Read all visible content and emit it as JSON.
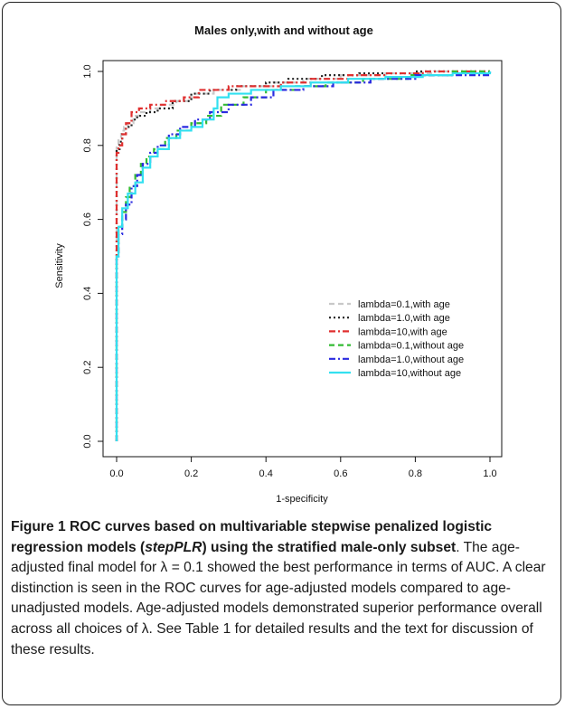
{
  "chart_data": {
    "type": "line",
    "title": "Males only,with and without age",
    "xlabel": "1-specificity",
    "ylabel": "Sensitivity",
    "xlim": [
      0,
      1
    ],
    "ylim": [
      0,
      1
    ],
    "xticks": [
      "0.0",
      "0.2",
      "0.4",
      "0.6",
      "0.8",
      "1.0"
    ],
    "yticks": [
      "0.0",
      "0.2",
      "0.4",
      "0.6",
      "0.8",
      "1.0"
    ],
    "grid": false,
    "legend_position": "bottom-right",
    "series": [
      {
        "name": "lambda=0.1,with age",
        "color": "#c8c8c8",
        "dash": "dashed",
        "points": [
          [
            0,
            0
          ],
          [
            0,
            0.52
          ],
          [
            0,
            0.7
          ],
          [
            0,
            0.8
          ],
          [
            0.005,
            0.82
          ],
          [
            0.012,
            0.84
          ],
          [
            0.02,
            0.85
          ],
          [
            0.03,
            0.86
          ],
          [
            0.045,
            0.88
          ],
          [
            0.06,
            0.89
          ],
          [
            0.09,
            0.9
          ],
          [
            0.12,
            0.91
          ],
          [
            0.16,
            0.92
          ],
          [
            0.2,
            0.94
          ],
          [
            0.26,
            0.95
          ],
          [
            0.33,
            0.96
          ],
          [
            0.42,
            0.97
          ],
          [
            0.5,
            0.98
          ],
          [
            0.6,
            0.99
          ],
          [
            0.72,
            0.995
          ],
          [
            0.85,
            1.0
          ],
          [
            1,
            1.0
          ]
        ]
      },
      {
        "name": "lambda=1.0,with age",
        "color": "#222222",
        "dash": "dotted",
        "points": [
          [
            0,
            0
          ],
          [
            0,
            0.55
          ],
          [
            0,
            0.72
          ],
          [
            0,
            0.79
          ],
          [
            0.008,
            0.81
          ],
          [
            0.015,
            0.83
          ],
          [
            0.025,
            0.85
          ],
          [
            0.04,
            0.87
          ],
          [
            0.055,
            0.88
          ],
          [
            0.08,
            0.89
          ],
          [
            0.11,
            0.9
          ],
          [
            0.15,
            0.92
          ],
          [
            0.2,
            0.94
          ],
          [
            0.25,
            0.95
          ],
          [
            0.32,
            0.96
          ],
          [
            0.4,
            0.97
          ],
          [
            0.46,
            0.98
          ],
          [
            0.55,
            0.99
          ],
          [
            0.65,
            0.995
          ],
          [
            0.8,
            1.0
          ],
          [
            1,
            1.0
          ]
        ]
      },
      {
        "name": "lambda=10,with age",
        "color": "#e03030",
        "dash": "dashdot",
        "points": [
          [
            0,
            0
          ],
          [
            0,
            0.5
          ],
          [
            0,
            0.7
          ],
          [
            0,
            0.78
          ],
          [
            0.005,
            0.8
          ],
          [
            0.015,
            0.83
          ],
          [
            0.025,
            0.86
          ],
          [
            0.04,
            0.89
          ],
          [
            0.06,
            0.9
          ],
          [
            0.09,
            0.91
          ],
          [
            0.13,
            0.92
          ],
          [
            0.18,
            0.93
          ],
          [
            0.22,
            0.95
          ],
          [
            0.3,
            0.96
          ],
          [
            0.38,
            0.96
          ],
          [
            0.44,
            0.97
          ],
          [
            0.52,
            0.98
          ],
          [
            0.62,
            0.99
          ],
          [
            0.72,
            0.995
          ],
          [
            0.82,
            1.0
          ],
          [
            1,
            1.0
          ]
        ]
      },
      {
        "name": "lambda=0.1,without age",
        "color": "#33bb33",
        "dash": "dashed",
        "points": [
          [
            0,
            0
          ],
          [
            0,
            0.5
          ],
          [
            0.005,
            0.58
          ],
          [
            0.015,
            0.62
          ],
          [
            0.025,
            0.66
          ],
          [
            0.035,
            0.69
          ],
          [
            0.05,
            0.72
          ],
          [
            0.065,
            0.75
          ],
          [
            0.08,
            0.77
          ],
          [
            0.1,
            0.79
          ],
          [
            0.13,
            0.82
          ],
          [
            0.16,
            0.84
          ],
          [
            0.2,
            0.86
          ],
          [
            0.24,
            0.88
          ],
          [
            0.28,
            0.91
          ],
          [
            0.34,
            0.93
          ],
          [
            0.4,
            0.95
          ],
          [
            0.48,
            0.96
          ],
          [
            0.56,
            0.97
          ],
          [
            0.66,
            0.98
          ],
          [
            0.78,
            0.99
          ],
          [
            0.9,
            1.0
          ],
          [
            1,
            1.0
          ]
        ]
      },
      {
        "name": "lambda=1.0,without age",
        "color": "#2a2ae0",
        "dash": "dashdot",
        "points": [
          [
            0,
            0
          ],
          [
            0,
            0.5
          ],
          [
            0.005,
            0.56
          ],
          [
            0.015,
            0.6
          ],
          [
            0.025,
            0.64
          ],
          [
            0.04,
            0.69
          ],
          [
            0.055,
            0.72
          ],
          [
            0.07,
            0.75
          ],
          [
            0.09,
            0.78
          ],
          [
            0.11,
            0.8
          ],
          [
            0.14,
            0.83
          ],
          [
            0.17,
            0.85
          ],
          [
            0.21,
            0.87
          ],
          [
            0.25,
            0.89
          ],
          [
            0.3,
            0.91
          ],
          [
            0.36,
            0.93
          ],
          [
            0.42,
            0.95
          ],
          [
            0.5,
            0.96
          ],
          [
            0.58,
            0.97
          ],
          [
            0.68,
            0.98
          ],
          [
            0.8,
            0.99
          ],
          [
            1,
            1.0
          ]
        ]
      },
      {
        "name": "lambda=10,without age",
        "color": "#33e0f0",
        "dash": "solid",
        "points": [
          [
            0,
            0
          ],
          [
            0,
            0.5
          ],
          [
            0.005,
            0.58
          ],
          [
            0.015,
            0.63
          ],
          [
            0.03,
            0.67
          ],
          [
            0.05,
            0.7
          ],
          [
            0.07,
            0.74
          ],
          [
            0.09,
            0.77
          ],
          [
            0.11,
            0.79
          ],
          [
            0.14,
            0.82
          ],
          [
            0.17,
            0.84
          ],
          [
            0.2,
            0.85
          ],
          [
            0.23,
            0.87
          ],
          [
            0.26,
            0.9
          ],
          [
            0.27,
            0.93
          ],
          [
            0.3,
            0.94
          ],
          [
            0.36,
            0.95
          ],
          [
            0.44,
            0.96
          ],
          [
            0.52,
            0.97
          ],
          [
            0.62,
            0.98
          ],
          [
            0.72,
            0.985
          ],
          [
            0.82,
            0.99
          ],
          [
            0.9,
            0.995
          ],
          [
            1,
            1.0
          ]
        ]
      }
    ]
  },
  "caption": {
    "label": "Figure 1",
    "title": "ROC curves based on multivariable stepwise penalized logistic regression models (",
    "title_em": "stepPLR",
    "title_end": ") using the stratified male-only subset",
    "body": ". The age-adjusted final model for λ = 0.1 showed the best performance in terms of AUC. A clear distinction is seen in the ROC curves for age-adjusted models compared to age-unadjusted models. Age-adjusted models demonstrated superior performance overall across all choices of λ. See Table 1 for detailed results and the text for discussion of these results."
  }
}
